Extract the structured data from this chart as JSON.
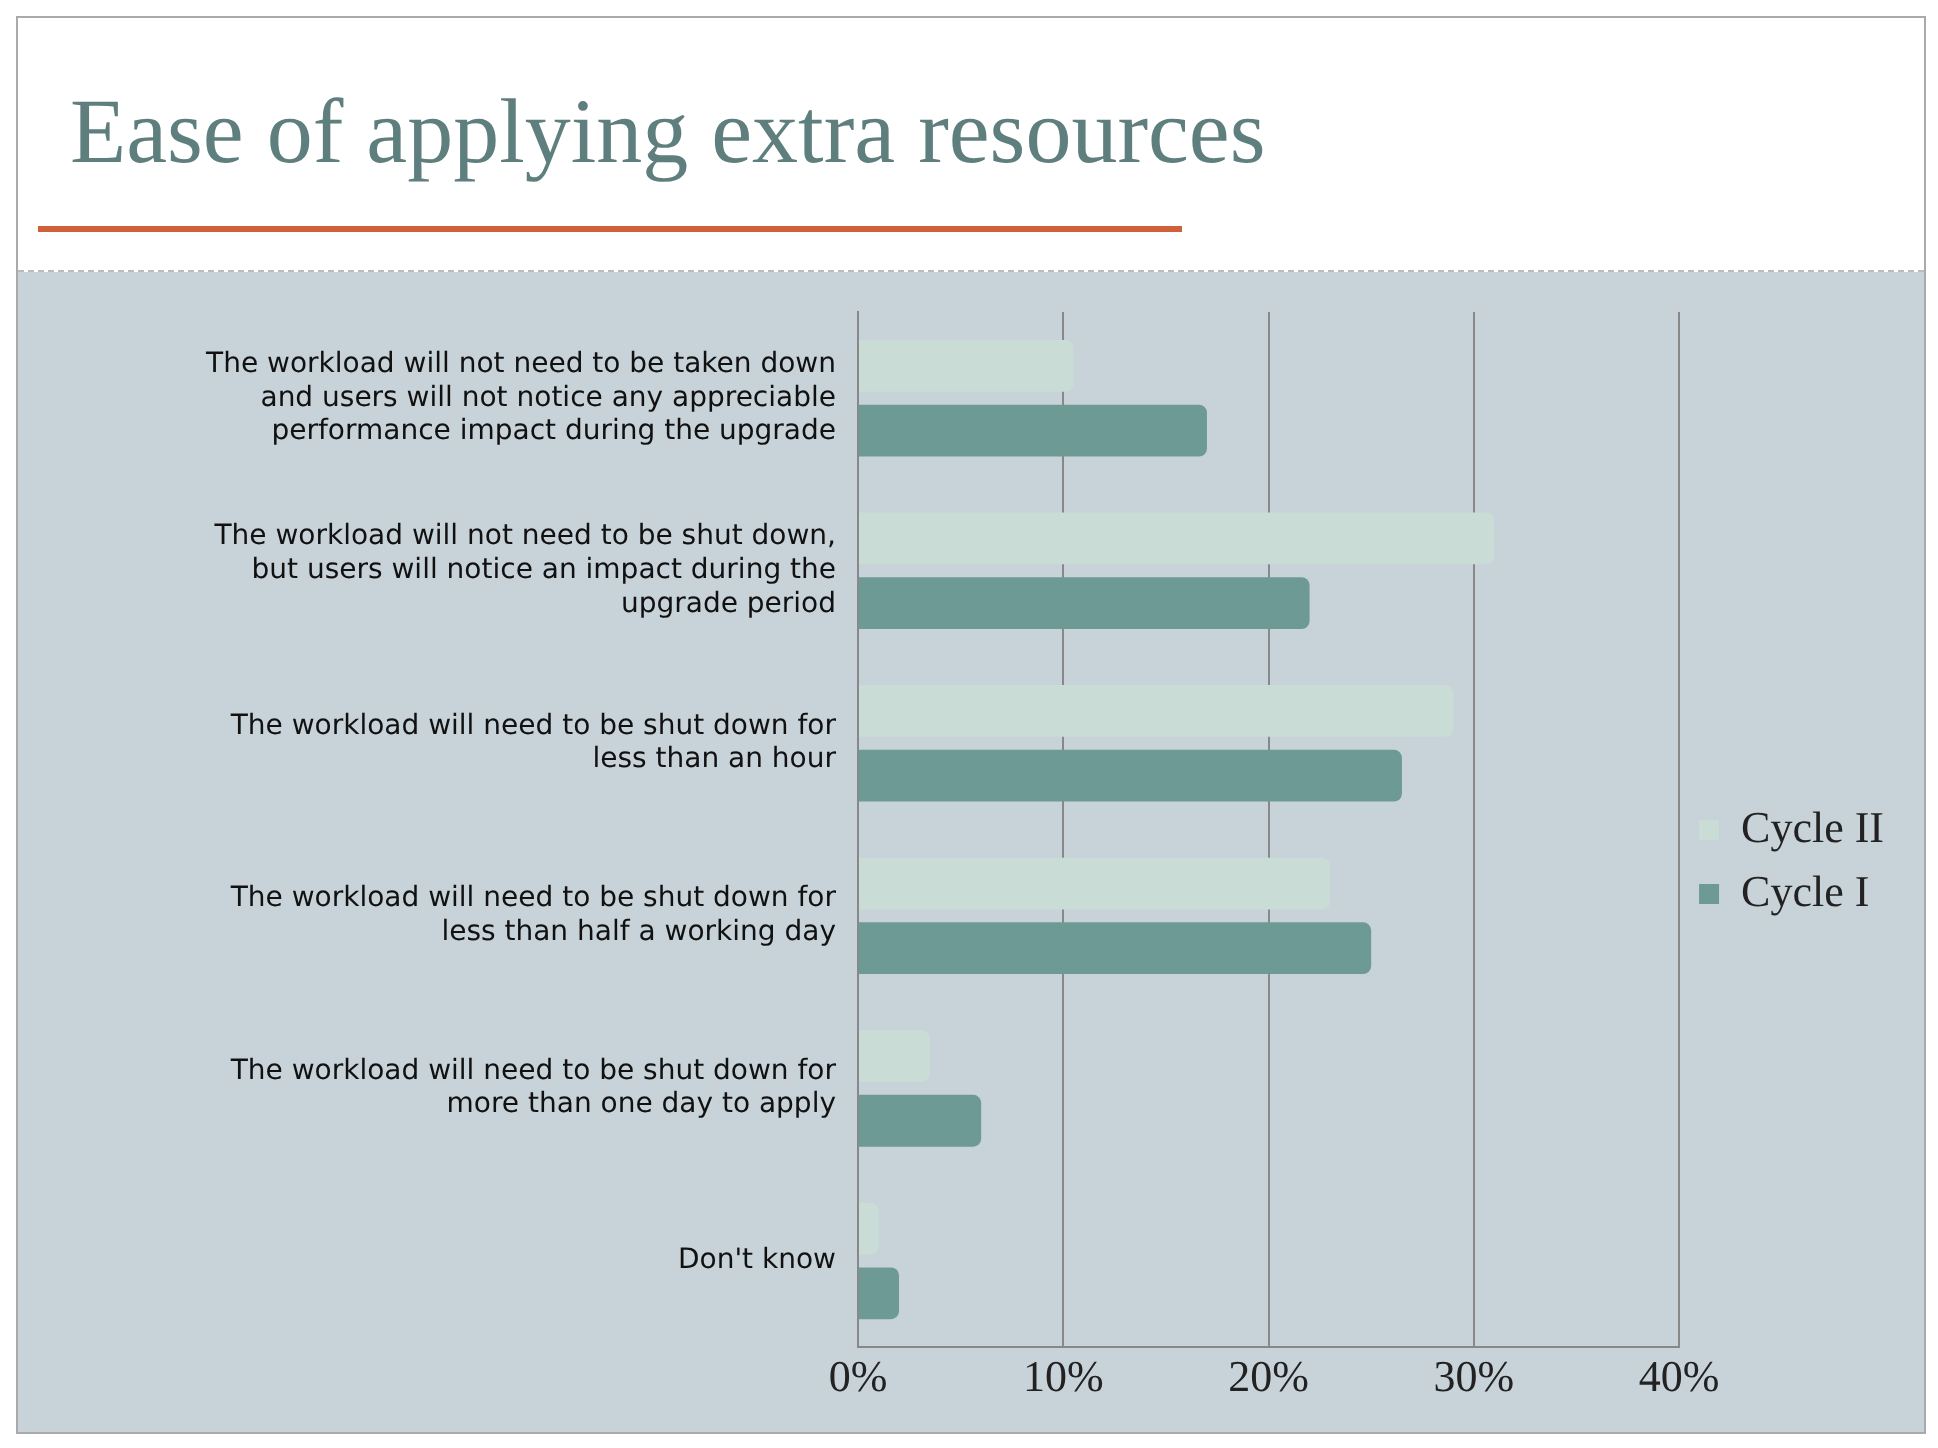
{
  "chart_data": {
    "type": "bar",
    "orientation": "horizontal",
    "title": "Ease of applying extra resources",
    "categories": [
      "The workload will not need to be taken down and users will not notice any appreciable performance impact during the upgrade",
      "The workload will not need to be shut down, but users will notice an impact during the upgrade period",
      "The workload will need to be shut down for less than an hour",
      "The workload will need to be shut down for less than half a working day",
      "The workload will need to be shut down for more than one day to apply",
      "Don't know"
    ],
    "series": [
      {
        "name": "Cycle II",
        "color": "#c9dcd6",
        "values": [
          10.5,
          31,
          29,
          23,
          3.5,
          1
        ]
      },
      {
        "name": "Cycle I",
        "color": "#6e9a95",
        "values": [
          17,
          22,
          26.5,
          25,
          6,
          2
        ]
      }
    ],
    "xlim": [
      0,
      40
    ],
    "xticks": [
      {
        "value": 0,
        "label": "0%"
      },
      {
        "value": 10,
        "label": "10%"
      },
      {
        "value": 20,
        "label": "20%"
      },
      {
        "value": 30,
        "label": "30%"
      },
      {
        "value": 40,
        "label": "40%"
      }
    ],
    "grid": "x",
    "legend": "right"
  }
}
